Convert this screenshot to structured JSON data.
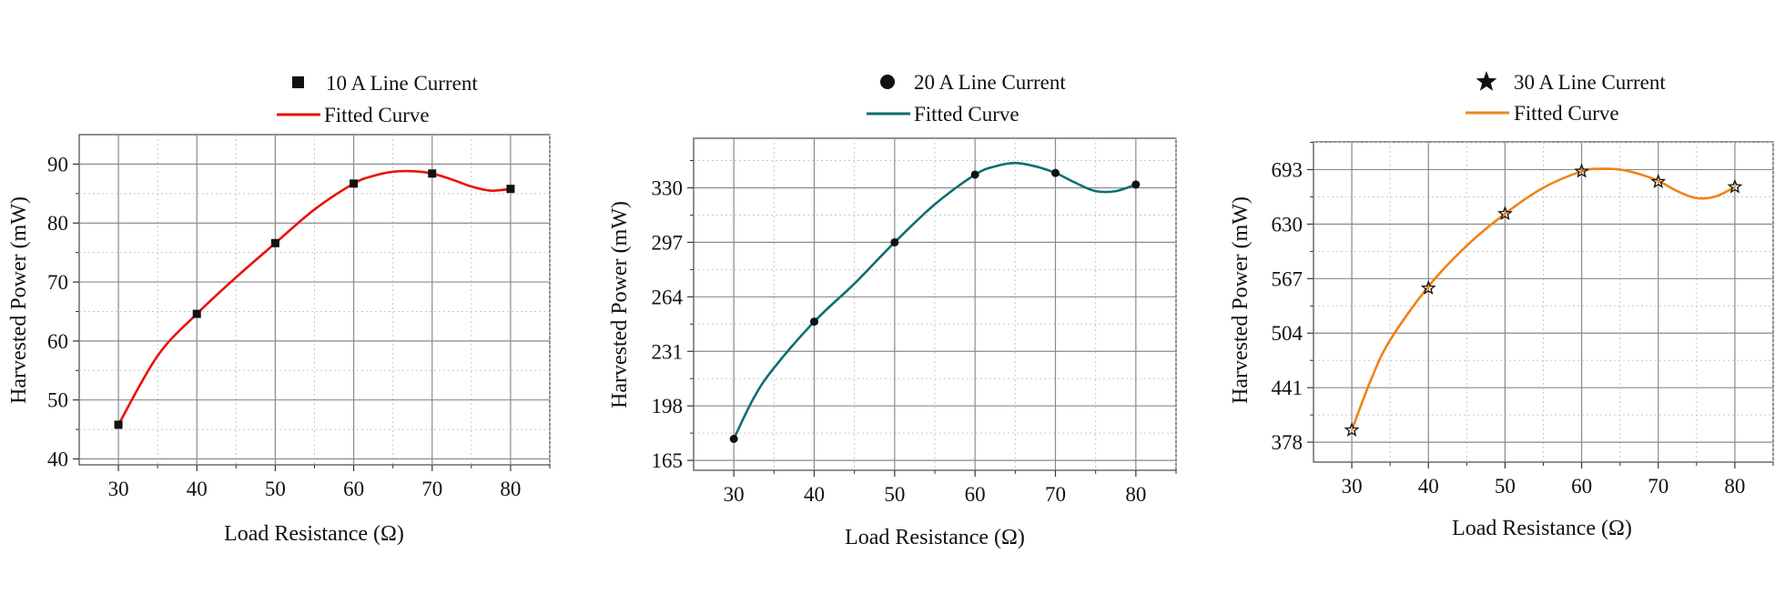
{
  "chart_data": [
    {
      "type": "scatter",
      "title": "",
      "xlabel": "Load Resistance (Ω)",
      "ylabel": "Harvested Power (mW)",
      "xlim": [
        25,
        85
      ],
      "ylim": [
        39,
        95
      ],
      "xticks": [
        30,
        40,
        50,
        60,
        70,
        80
      ],
      "yticks": [
        40,
        50,
        60,
        70,
        80,
        90
      ],
      "ytick_labels": [
        "40",
        "50",
        "60",
        "70",
        "80",
        "90"
      ],
      "grid": true,
      "legend_position": "top-center",
      "marker": "square",
      "marker_color": "#111111",
      "series": [
        {
          "name": "10 A Line Current",
          "kind": "points",
          "x": [
            30,
            40,
            50,
            60,
            70,
            80
          ],
          "y": [
            45.8,
            64.6,
            76.6,
            86.7,
            88.4,
            85.8
          ]
        },
        {
          "name": "Fitted Curve",
          "kind": "fit",
          "color": "#e8120c",
          "x": [
            30,
            35,
            40,
            45,
            50,
            55,
            60,
            62.5,
            65,
            67.5,
            70,
            72.5,
            75,
            77.5,
            80
          ],
          "y": [
            45.8,
            57.5,
            64.6,
            70.8,
            76.6,
            82.3,
            86.7,
            88.0,
            88.7,
            88.8,
            88.4,
            87.4,
            86.2,
            85.5,
            85.8
          ]
        }
      ]
    },
    {
      "type": "scatter",
      "title": "",
      "xlabel": "Load Resistance (Ω)",
      "ylabel": "Harvested Power (mW)",
      "xlim": [
        25,
        85
      ],
      "ylim": [
        159,
        360
      ],
      "xticks": [
        30,
        40,
        50,
        60,
        70,
        80
      ],
      "yticks": [
        165,
        198,
        231,
        264,
        297,
        330
      ],
      "ytick_labels": [
        "165",
        "198",
        "231",
        "264",
        "297",
        "330"
      ],
      "grid": true,
      "legend_position": "top-center",
      "marker": "circle",
      "marker_color": "#111111",
      "series": [
        {
          "name": "20 A Line Current",
          "kind": "points",
          "x": [
            30,
            40,
            50,
            60,
            70,
            80
          ],
          "y": [
            178,
            249,
            297,
            338,
            339,
            332
          ]
        },
        {
          "name": "Fitted Curve",
          "kind": "fit",
          "color": "#0e6e70",
          "x": [
            30,
            32.5,
            35,
            40,
            45,
            50,
            55,
            60,
            62.5,
            65,
            67.5,
            70,
            72.5,
            75,
            77.5,
            80
          ],
          "y": [
            178,
            203,
            221,
            249,
            272,
            297,
            320,
            338,
            343,
            345,
            343,
            339,
            333,
            328,
            328,
            332
          ]
        }
      ]
    },
    {
      "type": "scatter",
      "title": "",
      "xlabel": "Load Resistance (Ω)",
      "ylabel": "Harvested Power (mW)",
      "xlim": [
        25,
        85
      ],
      "ylim": [
        355,
        725
      ],
      "xticks": [
        30,
        40,
        50,
        60,
        70,
        80
      ],
      "yticks": [
        378,
        441,
        504,
        567,
        630,
        693
      ],
      "ytick_labels": [
        "378",
        "441",
        "504",
        "567",
        "630",
        "693"
      ],
      "grid": true,
      "legend_position": "top-center",
      "marker": "star",
      "marker_color": "#111111",
      "series": [
        {
          "name": "30 A Line Current",
          "kind": "points",
          "x": [
            30,
            40,
            50,
            60,
            70,
            80
          ],
          "y": [
            392,
            556,
            642,
            691,
            679,
            673
          ]
        },
        {
          "name": "Fitted Curve",
          "kind": "fit",
          "color": "#f28216",
          "x": [
            30,
            32.5,
            35,
            40,
            45,
            50,
            55,
            60,
            62.5,
            65,
            67.5,
            70,
            72.5,
            75,
            77.5,
            80
          ],
          "y": [
            392,
            450,
            496,
            558,
            605,
            642,
            672,
            691,
            694,
            693,
            688,
            680,
            668,
            660,
            662,
            673
          ]
        }
      ]
    }
  ]
}
